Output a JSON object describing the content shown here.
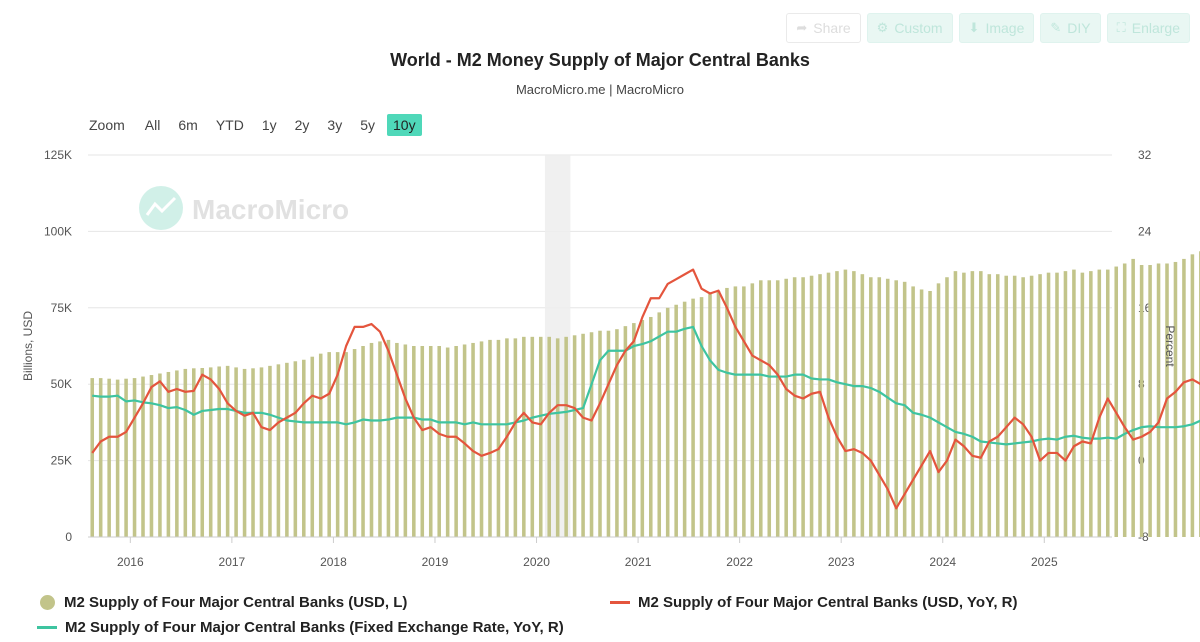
{
  "toolbar": {
    "share": "Share",
    "custom": "Custom",
    "image": "Image",
    "diy": "DIY",
    "enlarge": "Enlarge"
  },
  "zoom": {
    "label": "Zoom",
    "options": [
      "All",
      "6m",
      "YTD",
      "1y",
      "2y",
      "3y",
      "5y",
      "10y"
    ],
    "active": "10y"
  },
  "watermark": "MacroMicro",
  "colors": {
    "bars": "#c2c48a",
    "red": "#e4553d",
    "green": "#3ec4a0",
    "accent": "#4fd8b9",
    "grid": "#e6e6e6"
  },
  "chart_data": {
    "type": "bar",
    "title": "World - M2 Money Supply of Major Central Banks",
    "subtitle": "MacroMicro.me | MacroMicro",
    "ylabel_left": "Billions, USD",
    "ylabel_right": "Percent",
    "y_left_ticks": [
      "0",
      "25K",
      "50K",
      "75K",
      "100K",
      "125K"
    ],
    "y_left_range": [
      0,
      125000
    ],
    "y_right_ticks": [
      "-8",
      "0",
      "8",
      "16",
      "24",
      "32"
    ],
    "y_right_range": [
      -8,
      32
    ],
    "x_ticks": [
      "2016",
      "2017",
      "2018",
      "2019",
      "2020",
      "2021",
      "2022",
      "2023",
      "2024",
      "2025"
    ],
    "x_start": "2015-08",
    "x_end": "2025-08",
    "shaded_band": [
      "2020-02",
      "2020-04"
    ],
    "legend_position": "bottom",
    "series": [
      {
        "name": "M2 Supply of Four Major Central Banks (USD, L)",
        "kind": "bar",
        "axis": "left",
        "values": [
          52000,
          52000,
          51800,
          51500,
          51800,
          52000,
          52500,
          53000,
          53500,
          54000,
          54500,
          55000,
          55200,
          55300,
          55500,
          55800,
          56000,
          55500,
          55000,
          55200,
          55500,
          56000,
          56500,
          57000,
          57500,
          58000,
          59000,
          60000,
          60500,
          60500,
          60500,
          61500,
          62500,
          63500,
          64000,
          64500,
          63500,
          63000,
          62500,
          62500,
          62500,
          62500,
          62000,
          62500,
          63000,
          63500,
          64000,
          64500,
          64500,
          65000,
          65000,
          65500,
          65500,
          65500,
          65500,
          65000,
          65500,
          66000,
          66500,
          67000,
          67500,
          67500,
          68000,
          69000,
          70000,
          71000,
          72000,
          73500,
          75000,
          76000,
          77000,
          78000,
          78500,
          79500,
          80500,
          81500,
          82000,
          82000,
          83000,
          84000,
          84000,
          84000,
          84500,
          85000,
          85000,
          85500,
          86000,
          86500,
          87000,
          87500,
          87000,
          86000,
          85000,
          85000,
          84500,
          84000,
          83500,
          82000,
          81000,
          80500,
          83000,
          85000,
          87000,
          86500,
          87000,
          87000,
          86000,
          86000,
          85500,
          85500,
          85000,
          85500,
          86000,
          86500,
          86500,
          87000,
          87500,
          86500,
          87000,
          87500,
          87500,
          88500,
          89500,
          91000,
          89000,
          89000,
          89500,
          89500,
          90000,
          91000,
          92500,
          93500,
          94000,
          94500,
          95000,
          95500
        ]
      },
      {
        "name": "M2 Supply of Four Major Central Banks (USD, YoY, R)",
        "kind": "line",
        "axis": "right",
        "values": [
          0.8,
          2.0,
          2.5,
          2.5,
          3.0,
          4.5,
          6.0,
          7.7,
          8.3,
          7.2,
          7.5,
          7.2,
          7.3,
          9.0,
          8.5,
          7.5,
          6.0,
          5.2,
          4.7,
          5.0,
          3.5,
          3.2,
          4.0,
          4.5,
          5.0,
          6.0,
          6.8,
          6.5,
          7.0,
          9.0,
          12.0,
          14.0,
          14.0,
          14.3,
          13.5,
          11.5,
          9.0,
          6.5,
          4.5,
          3.2,
          3.5,
          2.8,
          2.5,
          2.5,
          1.8,
          1.0,
          0.5,
          0.8,
          1.2,
          2.5,
          4.0,
          5.0,
          4.0,
          3.8,
          5.0,
          5.8,
          5.8,
          5.5,
          4.5,
          4.2,
          6.0,
          8.0,
          10.0,
          11.5,
          12.5,
          15.0,
          17.0,
          17.0,
          18.5,
          19.0,
          19.5,
          20.0,
          18.0,
          17.5,
          17.8,
          16.0,
          14.0,
          12.5,
          11.0,
          10.5,
          10.0,
          9.0,
          7.5,
          6.8,
          6.5,
          7.0,
          7.2,
          4.5,
          2.5,
          1.0,
          1.2,
          0.8,
          0.0,
          -1.5,
          -3.0,
          -5.0,
          -3.5,
          -2.0,
          -0.5,
          1.0,
          -1.2,
          0.0,
          2.2,
          1.5,
          0.5,
          0.3,
          2.0,
          2.5,
          3.5,
          4.5,
          3.8,
          2.5,
          0.0,
          0.8,
          0.8,
          0.0,
          1.5,
          2.0,
          1.8,
          4.5,
          6.5,
          5.0,
          3.5,
          2.2,
          2.5,
          3.0,
          4.0,
          6.5,
          7.2,
          8.2,
          8.5,
          8.0,
          6.8
        ]
      },
      {
        "name": "M2 Supply of Four Major Central Banks (Fixed Exchange Rate, YoY, R)",
        "kind": "line",
        "axis": "right",
        "values": [
          6.8,
          6.7,
          6.7,
          6.8,
          6.2,
          6.3,
          6.1,
          6.0,
          5.8,
          5.5,
          5.6,
          5.3,
          4.8,
          5.2,
          5.3,
          5.4,
          5.4,
          5.2,
          5.0,
          5.0,
          5.0,
          4.8,
          4.5,
          4.2,
          4.1,
          4.0,
          4.0,
          4.0,
          4.0,
          4.0,
          3.8,
          4.0,
          4.3,
          4.2,
          4.2,
          4.3,
          4.5,
          4.5,
          4.5,
          4.3,
          4.3,
          4.0,
          4.0,
          4.0,
          3.8,
          4.0,
          3.8,
          3.8,
          3.8,
          3.8,
          4.0,
          4.2,
          4.5,
          4.7,
          4.9,
          5.0,
          5.1,
          5.3,
          5.5,
          8.0,
          10.5,
          11.5,
          11.5,
          11.5,
          12.0,
          12.2,
          12.5,
          13.0,
          13.5,
          13.5,
          13.8,
          14.0,
          12.0,
          10.5,
          9.5,
          9.2,
          9.0,
          9.0,
          9.0,
          9.0,
          8.8,
          8.8,
          8.8,
          9.0,
          9.0,
          8.6,
          8.5,
          8.5,
          8.2,
          8.0,
          7.8,
          7.8,
          7.6,
          7.2,
          6.6,
          6.0,
          5.8,
          5.0,
          4.8,
          4.5,
          4.0,
          3.5,
          3.0,
          2.8,
          2.5,
          2.0,
          1.9,
          1.8,
          1.7,
          1.8,
          1.9,
          2.0,
          2.2,
          2.3,
          2.2,
          2.5,
          2.6,
          2.4,
          2.3,
          2.3,
          2.4,
          2.3,
          2.8,
          3.2,
          3.5,
          3.6,
          3.5,
          3.5,
          3.5,
          3.6,
          3.8,
          4.2,
          4.5,
          4.8,
          5.0,
          4.5
        ]
      }
    ]
  }
}
